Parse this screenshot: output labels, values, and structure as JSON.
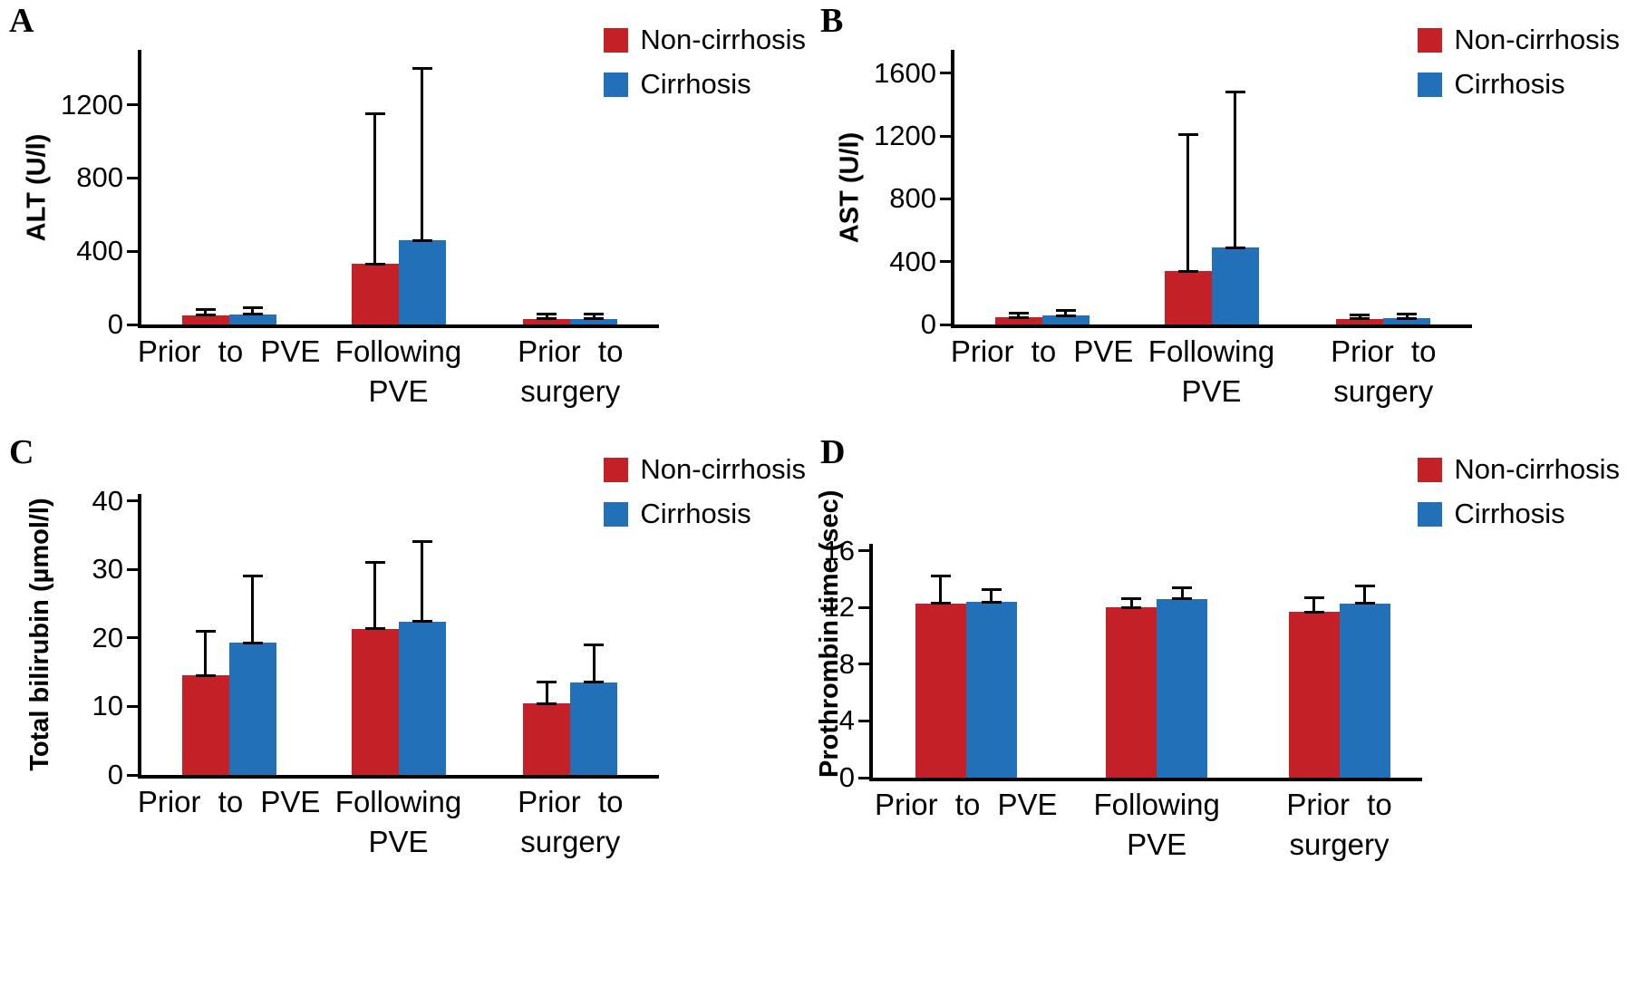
{
  "figure": {
    "background": "#ffffff",
    "panel_letters": [
      "A",
      "B",
      "C",
      "D"
    ]
  },
  "chart_data": [
    {
      "type": "bar",
      "panel_label": "A",
      "title": "",
      "ylabel": "ALT (U/l)",
      "xlabel": "",
      "categories": [
        "Prior to PVE",
        "Following\nPVE",
        "Prior to\nsurgery"
      ],
      "yticks": [
        0,
        400,
        800,
        1200
      ],
      "ylim": [
        0,
        1500
      ],
      "grid": false,
      "legend_position": "top-right",
      "series": [
        {
          "name": "Non-cirrhosis",
          "color": "#c32127",
          "values": [
            50,
            330,
            30
          ],
          "error_up": [
            30,
            820,
            25
          ]
        },
        {
          "name": "Cirrhosis",
          "color": "#2170b8",
          "values": [
            55,
            460,
            30
          ],
          "error_up": [
            35,
            940,
            25
          ]
        }
      ]
    },
    {
      "type": "bar",
      "panel_label": "B",
      "title": "",
      "ylabel": "AST (U/l)",
      "xlabel": "",
      "categories": [
        "Prior to PVE",
        "Following\nPVE",
        "Prior to\nsurgery"
      ],
      "yticks": [
        0,
        400,
        800,
        1200,
        1600
      ],
      "ylim": [
        0,
        1750
      ],
      "grid": false,
      "legend_position": "top-right",
      "series": [
        {
          "name": "Non-cirrhosis",
          "color": "#c32127",
          "values": [
            45,
            340,
            35
          ],
          "error_up": [
            30,
            870,
            25
          ]
        },
        {
          "name": "Cirrhosis",
          "color": "#2170b8",
          "values": [
            55,
            490,
            40
          ],
          "error_up": [
            35,
            990,
            25
          ]
        }
      ]
    },
    {
      "type": "bar",
      "panel_label": "C",
      "title": "",
      "ylabel": "Total bilirubin (µmol/l)",
      "xlabel": "",
      "categories": [
        "Prior to PVE",
        "Following\nPVE",
        "Prior to\nsurgery"
      ],
      "yticks": [
        0,
        10,
        20,
        30,
        40
      ],
      "ylim": [
        0,
        41
      ],
      "grid": false,
      "legend_position": "top-right",
      "series": [
        {
          "name": "Non-cirrhosis",
          "color": "#c32127",
          "values": [
            14.5,
            21.3,
            10.4
          ],
          "error_up": [
            6.5,
            9.7,
            3.1
          ]
        },
        {
          "name": "Cirrhosis",
          "color": "#2170b8",
          "values": [
            19.3,
            22.4,
            13.5
          ],
          "error_up": [
            9.7,
            11.6,
            5.5
          ]
        }
      ]
    },
    {
      "type": "bar",
      "panel_label": "D",
      "title": "",
      "ylabel": "Prothrombin time (sec)",
      "xlabel": "",
      "categories": [
        "Prior to PVE",
        "Following\nPVE",
        "Prior to\nsurgery"
      ],
      "yticks": [
        0,
        4,
        8,
        12,
        16
      ],
      "ylim": [
        0,
        16.5
      ],
      "grid": false,
      "legend_position": "top-right",
      "series": [
        {
          "name": "Non-cirrhosis",
          "color": "#c32127",
          "values": [
            12.3,
            12.0,
            11.7
          ],
          "error_up": [
            1.9,
            0.6,
            1.0
          ]
        },
        {
          "name": "Cirrhosis",
          "color": "#2170b8",
          "values": [
            12.4,
            12.6,
            12.3
          ],
          "error_up": [
            0.9,
            0.8,
            1.2
          ]
        }
      ]
    }
  ]
}
